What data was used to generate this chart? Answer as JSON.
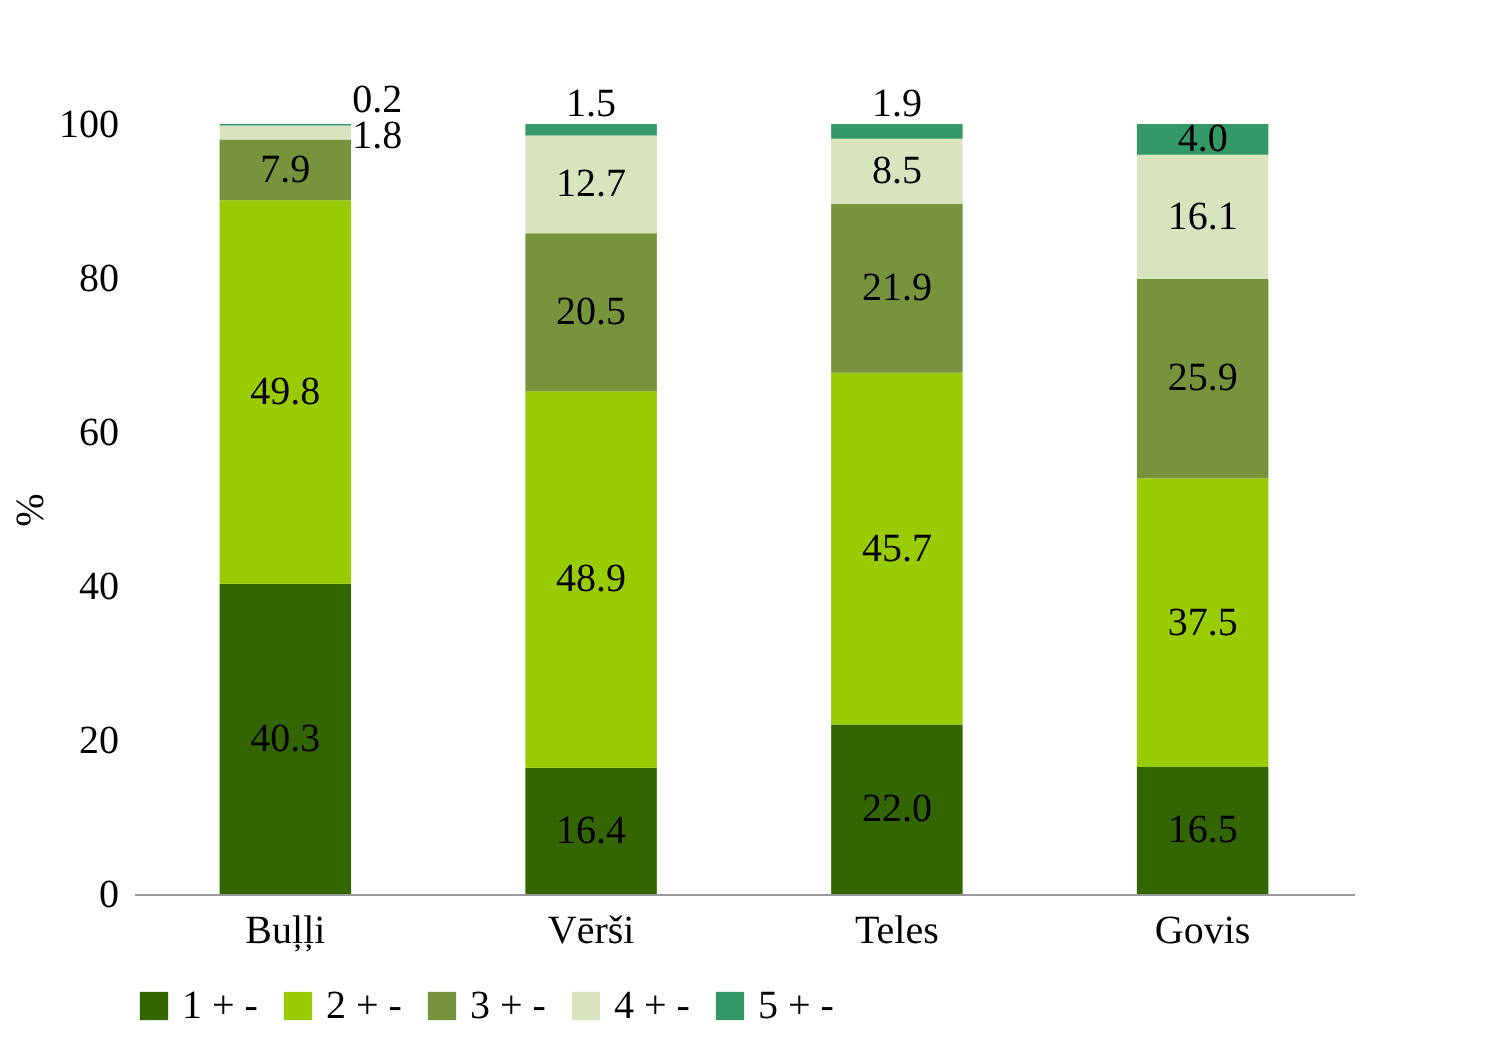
{
  "chart_data": {
    "type": "bar",
    "stacked": true,
    "ylabel": "%",
    "categories": [
      "Buļļi",
      "Vērši",
      "Teles",
      "Govis"
    ],
    "ylim": [
      0,
      100
    ],
    "yticks": [
      0,
      20,
      40,
      60,
      80,
      100
    ],
    "grid": false,
    "legend": "bottom",
    "series": [
      {
        "name": "1 + -",
        "color": "#336600",
        "values": [
          40.3,
          16.4,
          22.0,
          16.5
        ],
        "value_labels": [
          "40.3",
          "16.4",
          "22.0",
          "16.5"
        ]
      },
      {
        "name": "2 + -",
        "color": "#99cc00",
        "values": [
          49.8,
          48.9,
          45.7,
          37.5
        ],
        "value_labels": [
          "49.8",
          "48.9",
          "45.7",
          "37.5"
        ]
      },
      {
        "name": "3 + -",
        "color": "#77933c",
        "values": [
          7.9,
          20.5,
          21.9,
          25.9
        ],
        "value_labels": [
          "7.9",
          "20.5",
          "21.9",
          "25.9"
        ]
      },
      {
        "name": "4 + -",
        "color": "#d7e4bd",
        "values": [
          1.8,
          12.7,
          8.5,
          16.1
        ],
        "value_labels": [
          "1.8",
          "12.7",
          "8.5",
          "16.1"
        ]
      },
      {
        "name": "5 + -",
        "color": "#339966",
        "values": [
          0.2,
          1.5,
          1.9,
          4.0
        ],
        "value_labels": [
          "0.2",
          "1.5",
          "1.9",
          "4.0"
        ]
      }
    ]
  }
}
